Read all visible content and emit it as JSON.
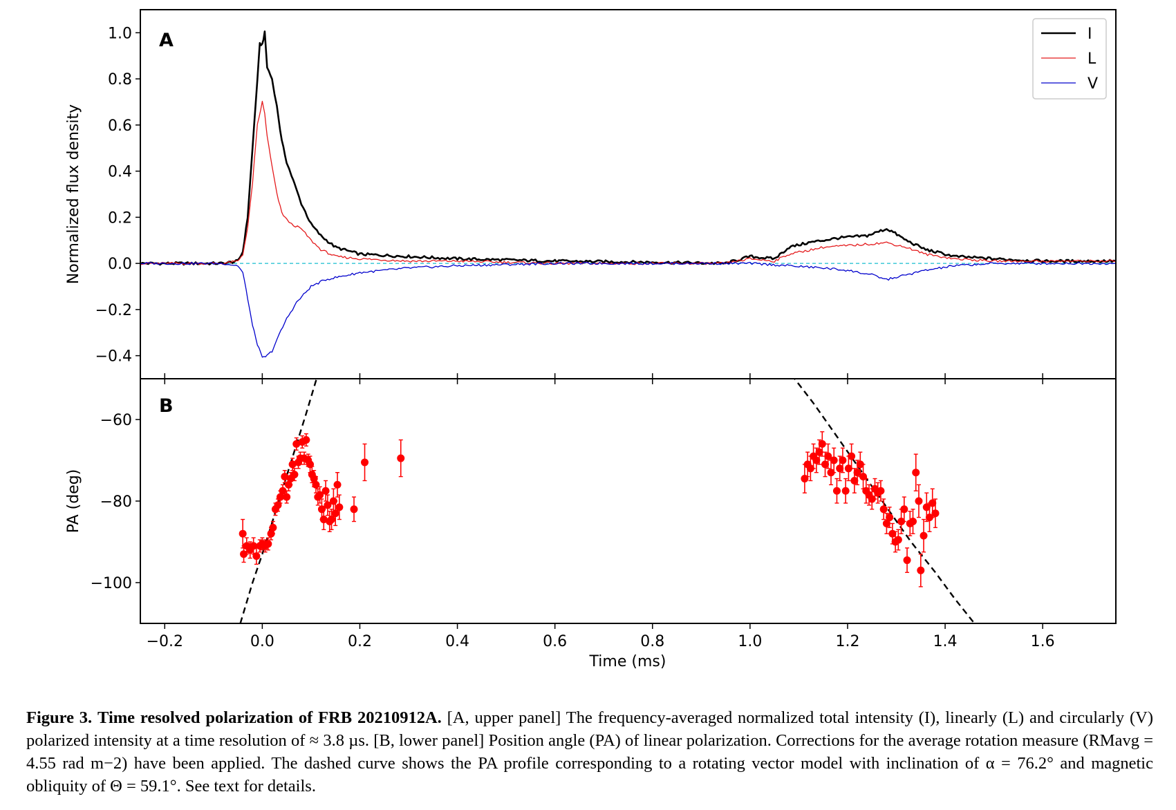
{
  "chart_data": [
    {
      "type": "line",
      "panel_label": "A",
      "xlabel": "",
      "ylabel": "Normalized flux density",
      "xlim": [
        -0.25,
        1.75
      ],
      "ylim": [
        -0.5,
        1.1
      ],
      "x_ticks": [
        -0.2,
        0.0,
        0.2,
        0.4,
        0.6,
        0.8,
        1.0,
        1.2,
        1.4,
        1.6
      ],
      "y_ticks": [
        -0.4,
        -0.2,
        0.0,
        0.2,
        0.4,
        0.6,
        0.8,
        1.0
      ],
      "y_tick_labels": [
        "−0.4",
        "−0.2",
        "0.0",
        "0.2",
        "0.4",
        "0.6",
        "0.8",
        "1.0"
      ],
      "legend_position": "top-right",
      "zero_line": {
        "y": 0.0,
        "style": "dashed",
        "color": "#17becf"
      },
      "series": [
        {
          "name": "I",
          "color": "#000000",
          "x": [
            -0.25,
            -0.08,
            -0.05,
            -0.04,
            -0.03,
            -0.02,
            -0.01,
            -0.005,
            0.0,
            0.005,
            0.01,
            0.02,
            0.03,
            0.04,
            0.05,
            0.06,
            0.07,
            0.08,
            0.1,
            0.12,
            0.15,
            0.2,
            0.3,
            0.4,
            0.6,
            0.8,
            0.95,
            1.0,
            1.05,
            1.08,
            1.12,
            1.18,
            1.24,
            1.28,
            1.29,
            1.32,
            1.36,
            1.42,
            1.5,
            1.6,
            1.75
          ],
          "y": [
            0.0,
            0.0,
            0.01,
            0.05,
            0.2,
            0.5,
            0.8,
            0.95,
            0.95,
            1.0,
            0.85,
            0.8,
            0.68,
            0.53,
            0.44,
            0.38,
            0.32,
            0.26,
            0.17,
            0.12,
            0.07,
            0.04,
            0.03,
            0.02,
            0.01,
            0.005,
            0.0,
            0.03,
            0.02,
            0.07,
            0.09,
            0.11,
            0.12,
            0.15,
            0.14,
            0.1,
            0.06,
            0.03,
            0.02,
            0.01,
            0.01
          ]
        },
        {
          "name": "L",
          "color": "#e41a1c",
          "x": [
            -0.25,
            -0.08,
            -0.05,
            -0.04,
            -0.03,
            -0.02,
            -0.01,
            0.0,
            0.005,
            0.01,
            0.02,
            0.03,
            0.04,
            0.05,
            0.06,
            0.08,
            0.1,
            0.12,
            0.15,
            0.2,
            0.3,
            0.4,
            0.6,
            0.8,
            0.95,
            1.0,
            1.05,
            1.08,
            1.15,
            1.22,
            1.28,
            1.32,
            1.36,
            1.42,
            1.5,
            1.6,
            1.75
          ],
          "y": [
            0.0,
            0.0,
            0.01,
            0.04,
            0.15,
            0.35,
            0.6,
            0.7,
            0.65,
            0.55,
            0.42,
            0.3,
            0.22,
            0.19,
            0.17,
            0.15,
            0.1,
            0.06,
            0.03,
            0.02,
            0.01,
            0.01,
            0.0,
            0.0,
            0.0,
            0.02,
            0.01,
            0.04,
            0.07,
            0.08,
            0.09,
            0.07,
            0.04,
            0.02,
            0.01,
            0.01,
            0.01
          ]
        },
        {
          "name": "V",
          "color": "#0000cc",
          "x": [
            -0.25,
            -0.08,
            -0.05,
            -0.04,
            -0.03,
            -0.02,
            -0.01,
            0.0,
            0.01,
            0.02,
            0.03,
            0.05,
            0.07,
            0.1,
            0.13,
            0.2,
            0.3,
            0.4,
            0.6,
            0.8,
            1.0,
            1.08,
            1.15,
            1.2,
            1.25,
            1.28,
            1.32,
            1.36,
            1.42,
            1.5,
            1.6,
            1.75
          ],
          "y": [
            0.0,
            0.0,
            -0.01,
            -0.04,
            -0.15,
            -0.27,
            -0.35,
            -0.41,
            -0.4,
            -0.38,
            -0.33,
            -0.24,
            -0.17,
            -0.1,
            -0.07,
            -0.04,
            -0.02,
            -0.01,
            0.0,
            0.0,
            0.0,
            -0.01,
            -0.02,
            -0.03,
            -0.05,
            -0.07,
            -0.05,
            -0.03,
            -0.01,
            0.0,
            0.0,
            0.0
          ]
        }
      ]
    },
    {
      "type": "scatter",
      "panel_label": "B",
      "xlabel": "Time (ms)",
      "ylabel": "PA (deg)",
      "xlim": [
        -0.25,
        1.75
      ],
      "ylim": [
        -110,
        -50
      ],
      "x_ticks": [
        -0.2,
        0.0,
        0.2,
        0.4,
        0.6,
        0.8,
        1.0,
        1.2,
        1.4,
        1.6
      ],
      "x_tick_labels": [
        "−0.2",
        "0.0",
        "0.2",
        "0.4",
        "0.6",
        "0.8",
        "1.0",
        "1.2",
        "1.4",
        "1.6"
      ],
      "y_ticks": [
        -100,
        -80,
        -60
      ],
      "y_tick_labels": [
        "−100",
        "−80",
        "−60"
      ],
      "series": [
        {
          "name": "PA",
          "color": "#ff0000",
          "points": [
            {
              "x": -0.04,
              "y": -88,
              "err": 3.5
            },
            {
              "x": -0.038,
              "y": -93,
              "err": 2
            },
            {
              "x": -0.032,
              "y": -91,
              "err": 2
            },
            {
              "x": -0.025,
              "y": -92,
              "err": 2
            },
            {
              "x": -0.018,
              "y": -91,
              "err": 2
            },
            {
              "x": -0.012,
              "y": -93.5,
              "err": 2
            },
            {
              "x": -0.005,
              "y": -91,
              "err": 1.5
            },
            {
              "x": 0.0,
              "y": -90.5,
              "err": 1.5
            },
            {
              "x": 0.006,
              "y": -91,
              "err": 1.5
            },
            {
              "x": 0.012,
              "y": -90.5,
              "err": 1.5
            },
            {
              "x": 0.018,
              "y": -88,
              "err": 1.5
            },
            {
              "x": 0.022,
              "y": -86.5,
              "err": 1.5
            },
            {
              "x": 0.027,
              "y": -82,
              "err": 1.5
            },
            {
              "x": 0.032,
              "y": -81,
              "err": 1.5
            },
            {
              "x": 0.037,
              "y": -79,
              "err": 1.5
            },
            {
              "x": 0.042,
              "y": -77.5,
              "err": 1.5
            },
            {
              "x": 0.046,
              "y": -74,
              "err": 1.5
            },
            {
              "x": 0.05,
              "y": -79,
              "err": 1.5
            },
            {
              "x": 0.054,
              "y": -76,
              "err": 1.5
            },
            {
              "x": 0.058,
              "y": -74.5,
              "err": 1.5
            },
            {
              "x": 0.062,
              "y": -71,
              "err": 1.5
            },
            {
              "x": 0.066,
              "y": -73.5,
              "err": 1.5
            },
            {
              "x": 0.07,
              "y": -66,
              "err": 1.5
            },
            {
              "x": 0.074,
              "y": -70.5,
              "err": 1.5
            },
            {
              "x": 0.078,
              "y": -69.5,
              "err": 1.5
            },
            {
              "x": 0.082,
              "y": -65.5,
              "err": 1.5
            },
            {
              "x": 0.086,
              "y": -69.5,
              "err": 1.5
            },
            {
              "x": 0.09,
              "y": -65,
              "err": 1.5
            },
            {
              "x": 0.094,
              "y": -70,
              "err": 1.5
            },
            {
              "x": 0.098,
              "y": -71,
              "err": 2
            },
            {
              "x": 0.102,
              "y": -73.5,
              "err": 2
            },
            {
              "x": 0.106,
              "y": -74.5,
              "err": 2
            },
            {
              "x": 0.11,
              "y": -76,
              "err": 2
            },
            {
              "x": 0.114,
              "y": -79,
              "err": 2
            },
            {
              "x": 0.118,
              "y": -78.5,
              "err": 2
            },
            {
              "x": 0.122,
              "y": -82,
              "err": 2.5
            },
            {
              "x": 0.126,
              "y": -84.5,
              "err": 2.5
            },
            {
              "x": 0.13,
              "y": -77.5,
              "err": 2.5
            },
            {
              "x": 0.134,
              "y": -81,
              "err": 2.5
            },
            {
              "x": 0.138,
              "y": -85,
              "err": 2.5
            },
            {
              "x": 0.142,
              "y": -84.5,
              "err": 2.5
            },
            {
              "x": 0.146,
              "y": -80,
              "err": 3
            },
            {
              "x": 0.15,
              "y": -83,
              "err": 3
            },
            {
              "x": 0.154,
              "y": -76,
              "err": 3
            },
            {
              "x": 0.158,
              "y": -81.5,
              "err": 3
            },
            {
              "x": 0.188,
              "y": -82,
              "err": 3
            },
            {
              "x": 0.21,
              "y": -70.5,
              "err": 4.5
            },
            {
              "x": 0.284,
              "y": -69.5,
              "err": 4.5
            },
            {
              "x": 1.112,
              "y": -74.5,
              "err": 3.5
            },
            {
              "x": 1.118,
              "y": -71,
              "err": 3
            },
            {
              "x": 1.124,
              "y": -72,
              "err": 3
            },
            {
              "x": 1.13,
              "y": -69,
              "err": 3
            },
            {
              "x": 1.136,
              "y": -70,
              "err": 3
            },
            {
              "x": 1.142,
              "y": -68,
              "err": 3
            },
            {
              "x": 1.148,
              "y": -66,
              "err": 3
            },
            {
              "x": 1.154,
              "y": -71,
              "err": 3
            },
            {
              "x": 1.16,
              "y": -69,
              "err": 3
            },
            {
              "x": 1.166,
              "y": -73,
              "err": 3
            },
            {
              "x": 1.172,
              "y": -70,
              "err": 3
            },
            {
              "x": 1.178,
              "y": -77.5,
              "err": 3
            },
            {
              "x": 1.184,
              "y": -72,
              "err": 3
            },
            {
              "x": 1.19,
              "y": -70,
              "err": 3
            },
            {
              "x": 1.196,
              "y": -77.5,
              "err": 3
            },
            {
              "x": 1.202,
              "y": -72,
              "err": 3
            },
            {
              "x": 1.208,
              "y": -69,
              "err": 3
            },
            {
              "x": 1.214,
              "y": -75,
              "err": 3
            },
            {
              "x": 1.22,
              "y": -73,
              "err": 3
            },
            {
              "x": 1.226,
              "y": -71,
              "err": 3
            },
            {
              "x": 1.232,
              "y": -74,
              "err": 3
            },
            {
              "x": 1.238,
              "y": -77.5,
              "err": 3
            },
            {
              "x": 1.244,
              "y": -78.5,
              "err": 2.5
            },
            {
              "x": 1.25,
              "y": -79.5,
              "err": 2.5
            },
            {
              "x": 1.256,
              "y": -77,
              "err": 2.5
            },
            {
              "x": 1.262,
              "y": -78,
              "err": 2.5
            },
            {
              "x": 1.268,
              "y": -77.5,
              "err": 2.5
            },
            {
              "x": 1.274,
              "y": -82,
              "err": 2.5
            },
            {
              "x": 1.28,
              "y": -85.5,
              "err": 2.5
            },
            {
              "x": 1.286,
              "y": -84,
              "err": 2.5
            },
            {
              "x": 1.292,
              "y": -88,
              "err": 2.5
            },
            {
              "x": 1.298,
              "y": -90,
              "err": 2.5
            },
            {
              "x": 1.304,
              "y": -89.5,
              "err": 2.5
            },
            {
              "x": 1.31,
              "y": -85,
              "err": 3
            },
            {
              "x": 1.316,
              "y": -82,
              "err": 3
            },
            {
              "x": 1.322,
              "y": -94.5,
              "err": 3
            },
            {
              "x": 1.328,
              "y": -85.5,
              "err": 3
            },
            {
              "x": 1.334,
              "y": -85,
              "err": 3
            },
            {
              "x": 1.34,
              "y": -73,
              "err": 4.5
            },
            {
              "x": 1.346,
              "y": -80,
              "err": 4
            },
            {
              "x": 1.35,
              "y": -97,
              "err": 4
            },
            {
              "x": 1.356,
              "y": -88.5,
              "err": 4
            },
            {
              "x": 1.362,
              "y": -81.5,
              "err": 3.5
            },
            {
              "x": 1.368,
              "y": -84,
              "err": 3.5
            },
            {
              "x": 1.374,
              "y": -80.5,
              "err": 3.5
            },
            {
              "x": 1.38,
              "y": -83,
              "err": 3.5
            }
          ]
        },
        {
          "name": "RVM",
          "color": "#000000",
          "style": "dashed",
          "segments": [
            {
              "x": [
                -0.045,
                -0.02,
                0.0,
                0.03,
                0.06,
                0.09,
                0.115
              ],
              "y": [
                -110,
                -100,
                -93,
                -81.5,
                -70,
                -58.5,
                -48.5
              ]
            },
            {
              "x": [
                1.085,
                1.13,
                1.18,
                1.23,
                1.28,
                1.33,
                1.38,
                1.42,
                1.46
              ],
              "y": [
                -49,
                -56,
                -64.5,
                -73,
                -81.5,
                -90,
                -97.5,
                -104,
                -110
              ]
            }
          ]
        }
      ]
    }
  ],
  "caption": {
    "label": "Figure 3.",
    "title": "Time resolved polarization of FRB 20210912A.",
    "line1_rest": "[A, upper panel] The frequency-averaged normalized total intensity (I), linearly (L)",
    "line2": "and circularly (V) polarized intensity at a time resolution of ≈ 3.8 µs. [B, lower panel] Position angle (PA) of linear polarization. Corrections for",
    "line3": "the average rotation measure (RMavg = 4.55 rad m−2) have been applied. The dashed curve shows the PA profile corresponding to a rotating vector",
    "line4": "model with inclination of α = 76.2° and magnetic obliquity of Θ = 59.1°. See text for details."
  }
}
